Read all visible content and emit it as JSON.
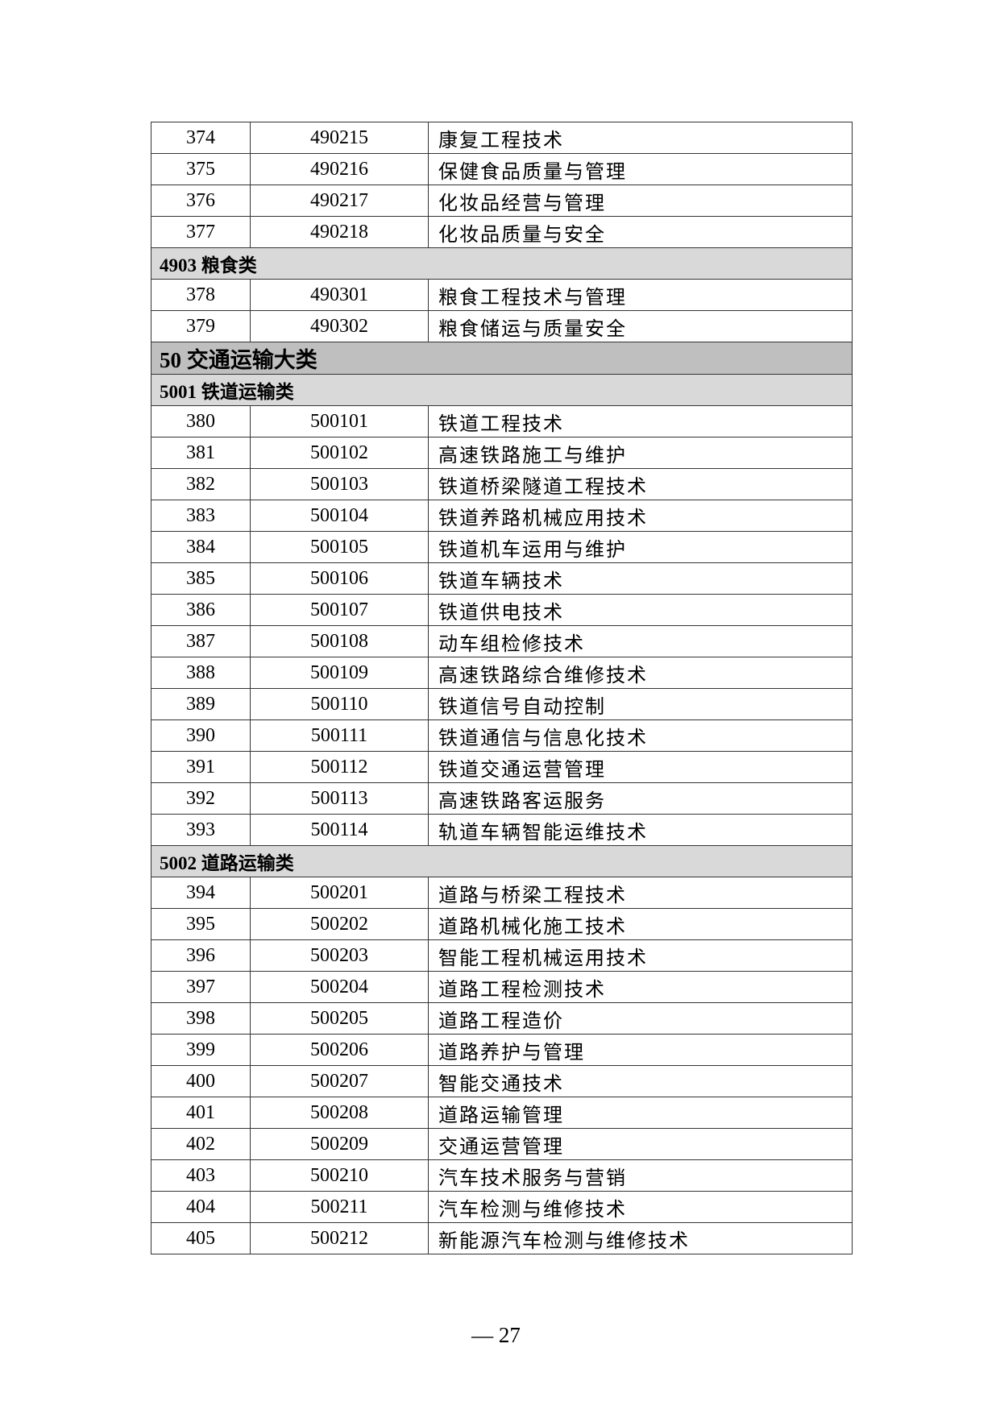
{
  "rows": [
    {
      "type": "item",
      "no": "374",
      "code": "490215",
      "name": "康复工程技术"
    },
    {
      "type": "item",
      "no": "375",
      "code": "490216",
      "name": "保健食品质量与管理"
    },
    {
      "type": "item",
      "no": "376",
      "code": "490217",
      "name": "化妆品经营与管理"
    },
    {
      "type": "item",
      "no": "377",
      "code": "490218",
      "name": "化妆品质量与安全"
    },
    {
      "type": "sub",
      "label": "4903 粮食类"
    },
    {
      "type": "item",
      "no": "378",
      "code": "490301",
      "name": "粮食工程技术与管理"
    },
    {
      "type": "item",
      "no": "379",
      "code": "490302",
      "name": "粮食储运与质量安全"
    },
    {
      "type": "major",
      "label": "50 交通运输大类"
    },
    {
      "type": "sub",
      "label": "5001 铁道运输类"
    },
    {
      "type": "item",
      "no": "380",
      "code": "500101",
      "name": "铁道工程技术"
    },
    {
      "type": "item",
      "no": "381",
      "code": "500102",
      "name": "高速铁路施工与维护"
    },
    {
      "type": "item",
      "no": "382",
      "code": "500103",
      "name": "铁道桥梁隧道工程技术"
    },
    {
      "type": "item",
      "no": "383",
      "code": "500104",
      "name": "铁道养路机械应用技术"
    },
    {
      "type": "item",
      "no": "384",
      "code": "500105",
      "name": "铁道机车运用与维护"
    },
    {
      "type": "item",
      "no": "385",
      "code": "500106",
      "name": "铁道车辆技术"
    },
    {
      "type": "item",
      "no": "386",
      "code": "500107",
      "name": "铁道供电技术"
    },
    {
      "type": "item",
      "no": "387",
      "code": "500108",
      "name": "动车组检修技术"
    },
    {
      "type": "item",
      "no": "388",
      "code": "500109",
      "name": "高速铁路综合维修技术"
    },
    {
      "type": "item",
      "no": "389",
      "code": "500110",
      "name": "铁道信号自动控制"
    },
    {
      "type": "item",
      "no": "390",
      "code": "500111",
      "name": "铁道通信与信息化技术"
    },
    {
      "type": "item",
      "no": "391",
      "code": "500112",
      "name": "铁道交通运营管理"
    },
    {
      "type": "item",
      "no": "392",
      "code": "500113",
      "name": "高速铁路客运服务"
    },
    {
      "type": "item",
      "no": "393",
      "code": "500114",
      "name": "轨道车辆智能运维技术"
    },
    {
      "type": "sub",
      "label": "5002 道路运输类"
    },
    {
      "type": "item",
      "no": "394",
      "code": "500201",
      "name": "道路与桥梁工程技术"
    },
    {
      "type": "item",
      "no": "395",
      "code": "500202",
      "name": "道路机械化施工技术"
    },
    {
      "type": "item",
      "no": "396",
      "code": "500203",
      "name": "智能工程机械运用技术"
    },
    {
      "type": "item",
      "no": "397",
      "code": "500204",
      "name": "道路工程检测技术"
    },
    {
      "type": "item",
      "no": "398",
      "code": "500205",
      "name": "道路工程造价"
    },
    {
      "type": "item",
      "no": "399",
      "code": "500206",
      "name": "道路养护与管理"
    },
    {
      "type": "item",
      "no": "400",
      "code": "500207",
      "name": "智能交通技术"
    },
    {
      "type": "item",
      "no": "401",
      "code": "500208",
      "name": "道路运输管理"
    },
    {
      "type": "item",
      "no": "402",
      "code": "500209",
      "name": "交通运营管理"
    },
    {
      "type": "item",
      "no": "403",
      "code": "500210",
      "name": "汽车技术服务与营销"
    },
    {
      "type": "item",
      "no": "404",
      "code": "500211",
      "name": "汽车检测与维修技术"
    },
    {
      "type": "item",
      "no": "405",
      "code": "500212",
      "name": "新能源汽车检测与维修技术"
    }
  ],
  "page_number": "— 27"
}
